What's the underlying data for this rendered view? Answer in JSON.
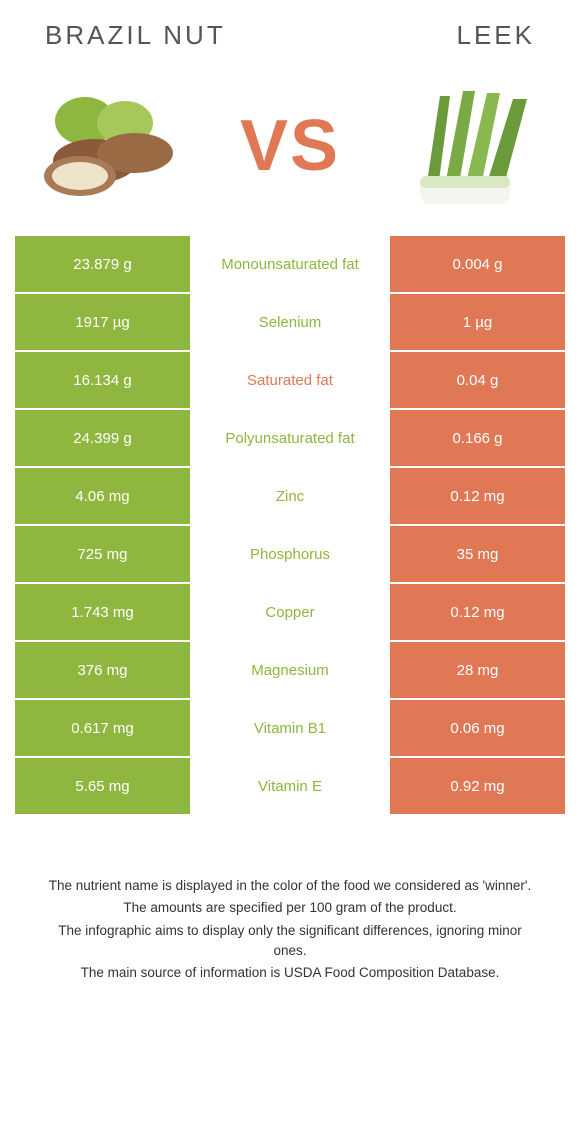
{
  "header": {
    "left_title": "Brazil nut",
    "right_title": "Leek",
    "vs_label": "VS"
  },
  "colors": {
    "left_bg": "#8fb63f",
    "right_bg": "#e07856",
    "label_left": "#8fb63f",
    "label_right": "#e07856",
    "vs": "#e07856"
  },
  "rows": [
    {
      "left": "23.879 g",
      "label": "Monounsaturated fat",
      "right": "0.004 g",
      "winner": "left"
    },
    {
      "left": "1917 µg",
      "label": "Selenium",
      "right": "1 µg",
      "winner": "left"
    },
    {
      "left": "16.134 g",
      "label": "Saturated fat",
      "right": "0.04 g",
      "winner": "right"
    },
    {
      "left": "24.399 g",
      "label": "Polyunsaturated fat",
      "right": "0.166 g",
      "winner": "left"
    },
    {
      "left": "4.06 mg",
      "label": "Zinc",
      "right": "0.12 mg",
      "winner": "left"
    },
    {
      "left": "725 mg",
      "label": "Phosphorus",
      "right": "35 mg",
      "winner": "left"
    },
    {
      "left": "1.743 mg",
      "label": "Copper",
      "right": "0.12 mg",
      "winner": "left"
    },
    {
      "left": "376 mg",
      "label": "Magnesium",
      "right": "28 mg",
      "winner": "left"
    },
    {
      "left": "0.617 mg",
      "label": "Vitamin B1",
      "right": "0.06 mg",
      "winner": "left"
    },
    {
      "left": "5.65 mg",
      "label": "Vitamin E",
      "right": "0.92 mg",
      "winner": "left"
    }
  ],
  "footer": {
    "line1": "The nutrient name is displayed in the color of the food we considered as 'winner'.",
    "line2": "The amounts are specified per 100 gram of the product.",
    "line3": "The infographic aims to display only the significant differences, ignoring minor ones.",
    "line4": "The main source of information is USDA Food Composition Database."
  }
}
